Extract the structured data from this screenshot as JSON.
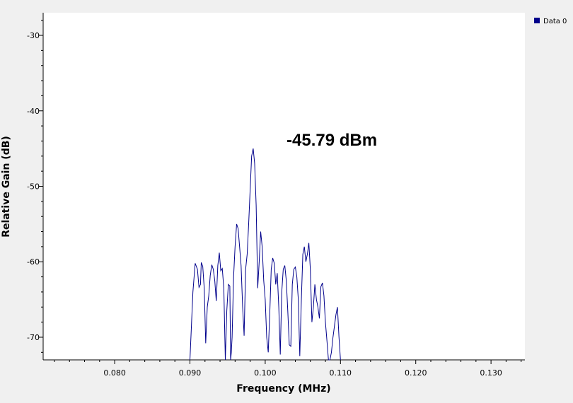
{
  "chart_data": {
    "type": "line",
    "title": "",
    "xlabel": "Frequency (MHz)",
    "ylabel": "Relative Gain (dB)",
    "xlim": [
      0.0705,
      0.1345
    ],
    "ylim": [
      -73,
      -27
    ],
    "xticks": [
      "0.080",
      "0.090",
      "0.100",
      "0.110",
      "0.120",
      "0.130"
    ],
    "xtick_values": [
      0.08,
      0.09,
      0.1,
      0.11,
      0.12,
      0.13
    ],
    "yticks": [
      "-30",
      "-40",
      "-50",
      "-60",
      "-70"
    ],
    "ytick_values": [
      -30,
      -40,
      -50,
      -60,
      -70
    ],
    "grid": false,
    "legend_position": "top-right",
    "annotation": "-45.79 dBm",
    "line_color": "#00008b",
    "series": [
      {
        "name": "Data 0",
        "x": [
          0.09,
          0.0904,
          0.0907,
          0.091,
          0.0912,
          0.0914,
          0.0915,
          0.0917,
          0.0919,
          0.0921,
          0.0923,
          0.0925,
          0.0927,
          0.0929,
          0.0931,
          0.0933,
          0.0935,
          0.0937,
          0.0939,
          0.0941,
          0.0943,
          0.0945,
          0.0947,
          0.0949,
          0.0951,
          0.0953,
          0.0954,
          0.0955,
          0.0956,
          0.0958,
          0.096,
          0.0962,
          0.0964,
          0.0966,
          0.0968,
          0.097,
          0.0972,
          0.0974,
          0.0976,
          0.0978,
          0.098,
          0.0982,
          0.0984,
          0.0986,
          0.0988,
          0.099,
          0.0992,
          0.0994,
          0.0996,
          0.0998,
          0.1,
          0.1002,
          0.1004,
          0.1006,
          0.1008,
          0.101,
          0.1012,
          0.1014,
          0.1016,
          0.1018,
          0.102,
          0.1022,
          0.1024,
          0.1026,
          0.1028,
          0.103,
          0.1032,
          0.1034,
          0.1036,
          0.1038,
          0.104,
          0.1042,
          0.1044,
          0.1046,
          0.1048,
          0.105,
          0.1052,
          0.1054,
          0.1056,
          0.1058,
          0.106,
          0.1062,
          0.1064,
          0.1066,
          0.1068,
          0.107,
          0.1072,
          0.1074,
          0.1076,
          0.1078,
          0.108,
          0.1082,
          0.1084,
          0.1086,
          0.1088,
          0.109,
          0.1092,
          0.1094,
          0.1096,
          0.1098,
          0.11
        ],
        "y": [
          -73.2,
          -64.0,
          -60.2,
          -61.0,
          -63.4,
          -63.0,
          -60.1,
          -60.6,
          -63.5,
          -70.8,
          -66.0,
          -64.5,
          -61.8,
          -60.4,
          -61.0,
          -62.5,
          -65.2,
          -60.5,
          -58.8,
          -61.2,
          -60.9,
          -63.5,
          -73.5,
          -66.5,
          -63.0,
          -63.2,
          -73.5,
          -72.0,
          -70.0,
          -62.0,
          -58.0,
          -55.0,
          -55.6,
          -58.0,
          -60.5,
          -66.0,
          -69.8,
          -61.0,
          -59.0,
          -55.0,
          -50.5,
          -46.0,
          -45.0,
          -47.0,
          -52.5,
          -63.5,
          -60.0,
          -56.0,
          -58.0,
          -62.5,
          -65.0,
          -70.0,
          -72.0,
          -67.0,
          -61.0,
          -59.5,
          -60.2,
          -63.0,
          -61.5,
          -66.0,
          -72.3,
          -64.0,
          -61.0,
          -60.5,
          -62.5,
          -66.5,
          -71.0,
          -71.2,
          -63.0,
          -61.0,
          -60.7,
          -62.0,
          -65.0,
          -72.5,
          -65.0,
          -59.0,
          -58.0,
          -60.0,
          -59.0,
          -57.5,
          -61.0,
          -68.0,
          -66.0,
          -63.0,
          -65.0,
          -66.0,
          -67.5,
          -63.3,
          -62.8,
          -64.5,
          -68.0,
          -70.5,
          -73.0,
          -73.0,
          -72.0,
          -70.0,
          -68.5,
          -67.0,
          -66.0,
          -70.0,
          -73.2
        ]
      }
    ]
  }
}
